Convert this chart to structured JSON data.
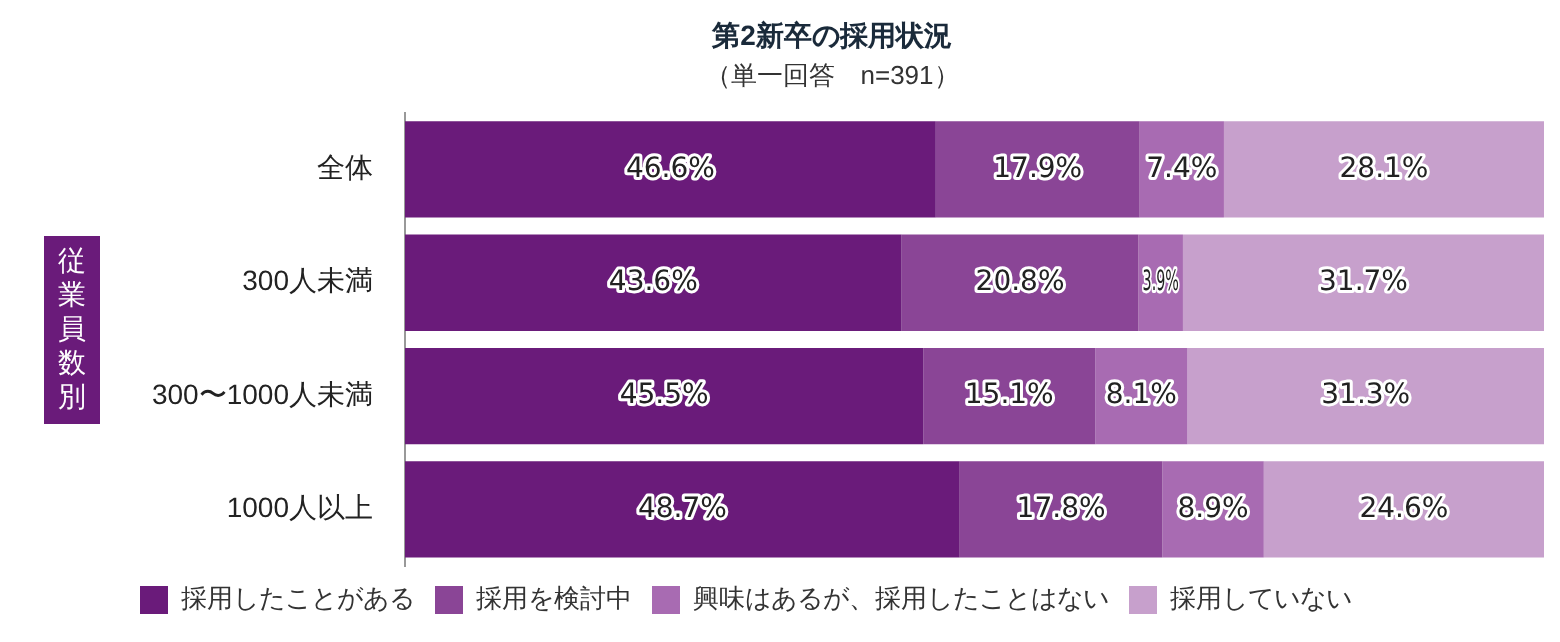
{
  "chart_data": {
    "type": "bar",
    "orientation": "horizontal",
    "stacked": true,
    "title": "第2新卒の採用状況",
    "subtitle": "（単一回答　n=391）",
    "ylabel": "従業員数別",
    "categories": [
      "全体",
      "300人未満",
      "300〜1000人未満",
      "1000人以上"
    ],
    "series": [
      {
        "name": "採用したことがある",
        "color": "#6a1b7a",
        "values": [
          46.6,
          43.6,
          45.5,
          48.7
        ],
        "value_labels": [
          "46.6%",
          "43.6%",
          "45.5%",
          "48.7%"
        ]
      },
      {
        "name": "採用を検討中",
        "color": "#8a4596",
        "values": [
          17.9,
          20.8,
          15.1,
          17.8
        ],
        "value_labels": [
          "17.9%",
          "20.8%",
          "15.1%",
          "17.8%"
        ]
      },
      {
        "name": "興味はあるが、採用したことはない",
        "color": "#a86bb2",
        "values": [
          7.4,
          3.9,
          8.1,
          8.9
        ],
        "value_labels": [
          "7.4%",
          "3.9%",
          "8.1%",
          "8.9%"
        ]
      },
      {
        "name": "採用していない",
        "color": "#c7a0cc",
        "values": [
          28.1,
          31.7,
          31.3,
          24.6
        ],
        "value_labels": [
          "28.1%",
          "31.7%",
          "31.3%",
          "24.6%"
        ]
      }
    ],
    "xlim": [
      0,
      100
    ],
    "tick_labels": "y",
    "legend": "bottom"
  }
}
